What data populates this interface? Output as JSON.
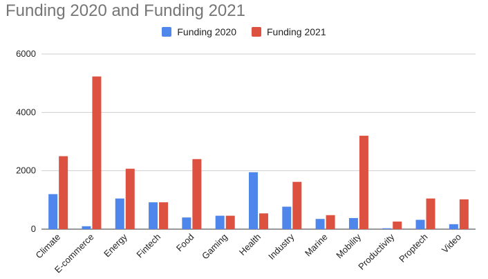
{
  "chart_data": {
    "type": "bar",
    "title": "Funding 2020 and Funding 2021",
    "categories": [
      "Climate",
      "E-commerce",
      "Energy",
      "Fintech",
      "Food",
      "Gaming",
      "Health",
      "Industry",
      "Marine",
      "Mobility",
      "Productivity",
      "Proptech",
      "Video"
    ],
    "series": [
      {
        "name": "Funding 2020",
        "color": "#4f86ec",
        "values": [
          1200,
          100,
          1050,
          920,
          400,
          460,
          1950,
          770,
          350,
          380,
          30,
          320,
          170
        ]
      },
      {
        "name": "Funding 2021",
        "color": "#dc5140",
        "values": [
          2500,
          5230,
          2070,
          920,
          2400,
          460,
          540,
          1620,
          480,
          3200,
          260,
          1050,
          1020
        ]
      }
    ],
    "y_ticks": [
      "0",
      "2000",
      "4000",
      "6000"
    ],
    "ylim": [
      0,
      6000
    ],
    "grid": true,
    "legend_position": "top-center"
  }
}
